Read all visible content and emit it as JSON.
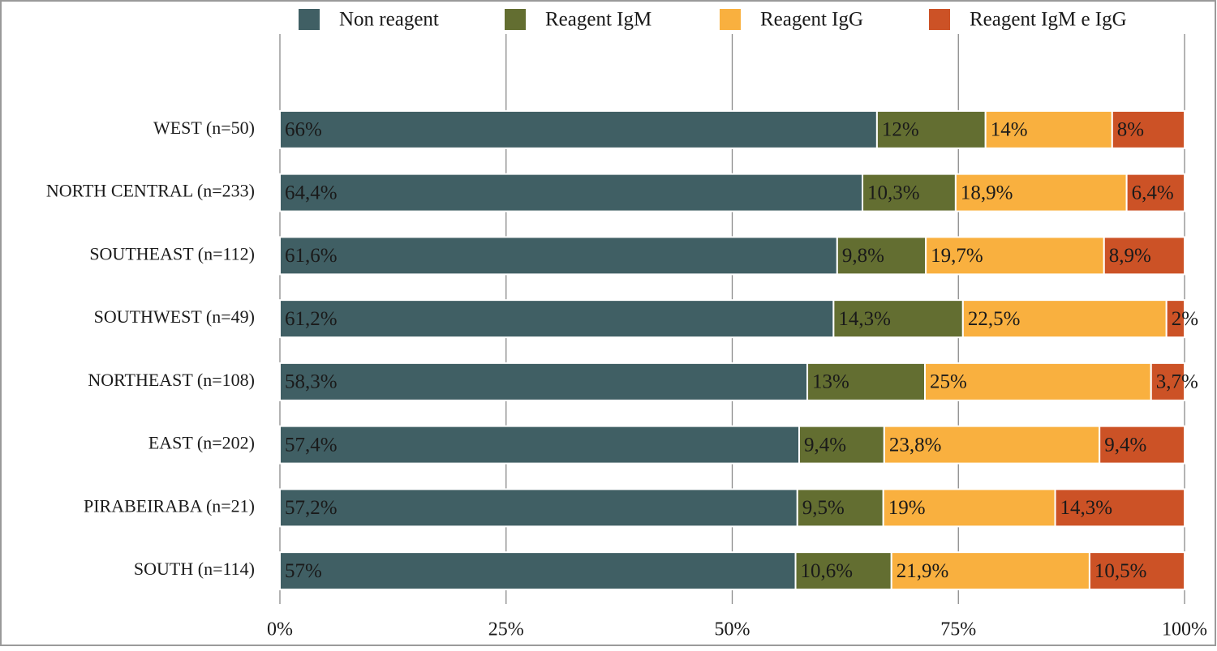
{
  "chart_data": {
    "type": "bar",
    "orientation": "horizontal",
    "stacked": true,
    "categories": [
      "WEST (n=50)",
      "NORTH CENTRAL (n=233)",
      "SOUTHEAST (n=112)",
      "SOUTHWEST (n=49)",
      "NORTHEAST (n=108)",
      "EAST (n=202)",
      "PIRABEIRABA (n=21)",
      "SOUTH (n=114)"
    ],
    "series": [
      {
        "name": "Non reagent",
        "color": "#405f64",
        "values": [
          66,
          64.4,
          61.6,
          61.2,
          58.3,
          57.4,
          57.2,
          57
        ],
        "value_labels": [
          "66%",
          "64,4%",
          "61,6%",
          "61,2%",
          "58,3%",
          "57,4%",
          "57,2%",
          "57%"
        ]
      },
      {
        "name": "Reagent IgM",
        "color": "#636e31",
        "values": [
          12,
          10.3,
          9.8,
          14.3,
          13,
          9.4,
          9.5,
          10.6
        ],
        "value_labels": [
          "12%",
          "10,3%",
          "9,8%",
          "14,3%",
          "13%",
          "9,4%",
          "9,5%",
          "10,6%"
        ]
      },
      {
        "name": "Reagent IgG",
        "color": "#f9b03f",
        "values": [
          14,
          18.9,
          19.7,
          22.5,
          25,
          23.8,
          19,
          21.9
        ],
        "value_labels": [
          "14%",
          "18,9%",
          "19,7%",
          "22,5%",
          "25%",
          "23,8%",
          "19%",
          "21,9%"
        ]
      },
      {
        "name": "Reagent IgM e IgG",
        "color": "#cc5226",
        "values": [
          8,
          6.4,
          8.9,
          2,
          3.7,
          9.4,
          14.3,
          10.5
        ],
        "value_labels": [
          "8%",
          "6,4%",
          "8,9%",
          "2%",
          "3,7%",
          "9,4%",
          "14,3%",
          "10,5%"
        ]
      }
    ],
    "xlim": [
      0,
      100
    ],
    "xticks": [
      {
        "value": 0,
        "label": "0%"
      },
      {
        "value": 25,
        "label": "25%"
      },
      {
        "value": 50,
        "label": "50%"
      },
      {
        "value": 75,
        "label": "75%"
      },
      {
        "value": 100,
        "label": "100%"
      }
    ],
    "grid": true,
    "legend": "top"
  }
}
